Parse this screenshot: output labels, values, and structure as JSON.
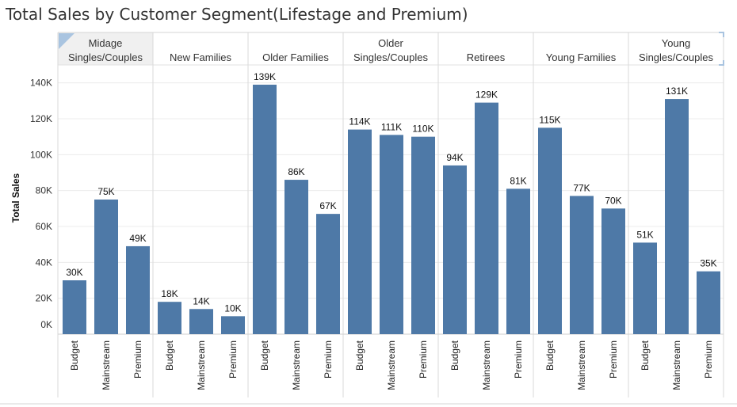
{
  "chart_data": {
    "type": "bar",
    "title": "Total Sales by Customer Segment(Lifestage and Premium)",
    "ylabel": "Total Sales",
    "xlabel": "",
    "ylim": [
      0,
      150000
    ],
    "yticks": [
      0,
      20000,
      40000,
      60000,
      80000,
      100000,
      120000,
      140000
    ],
    "ytick_labels": [
      "0K",
      "20K",
      "40K",
      "60K",
      "80K",
      "100K",
      "120K",
      "140K"
    ],
    "grid": true,
    "bar_color": "#4e79a7",
    "groups": [
      {
        "label": [
          "Midage",
          "Singles/Couples"
        ],
        "categories": [
          "Budget",
          "Mainstream",
          "Premium"
        ],
        "values": [
          30000,
          75000,
          49000
        ],
        "labels": [
          "30K",
          "75K",
          "49K"
        ]
      },
      {
        "label": [
          "New Families"
        ],
        "categories": [
          "Budget",
          "Mainstream",
          "Premium"
        ],
        "values": [
          18000,
          14000,
          10000
        ],
        "labels": [
          "18K",
          "14K",
          "10K"
        ]
      },
      {
        "label": [
          "Older Families"
        ],
        "categories": [
          "Budget",
          "Mainstream",
          "Premium"
        ],
        "values": [
          139000,
          86000,
          67000
        ],
        "labels": [
          "139K",
          "86K",
          "67K"
        ]
      },
      {
        "label": [
          "Older",
          "Singles/Couples"
        ],
        "categories": [
          "Budget",
          "Mainstream",
          "Premium"
        ],
        "values": [
          114000,
          111000,
          110000
        ],
        "labels": [
          "114K",
          "111K",
          "110K"
        ]
      },
      {
        "label": [
          "Retirees"
        ],
        "categories": [
          "Budget",
          "Mainstream",
          "Premium"
        ],
        "values": [
          94000,
          129000,
          81000
        ],
        "labels": [
          "94K",
          "129K",
          "81K"
        ]
      },
      {
        "label": [
          "Young Families"
        ],
        "categories": [
          "Budget",
          "Mainstream",
          "Premium"
        ],
        "values": [
          115000,
          77000,
          70000
        ],
        "labels": [
          "115K",
          "77K",
          "70K"
        ]
      },
      {
        "label": [
          "Young",
          "Singles/Couples"
        ],
        "categories": [
          "Budget",
          "Mainstream",
          "Premium"
        ],
        "values": [
          51000,
          131000,
          35000
        ],
        "labels": [
          "51K",
          "131K",
          "35K"
        ]
      }
    ]
  }
}
